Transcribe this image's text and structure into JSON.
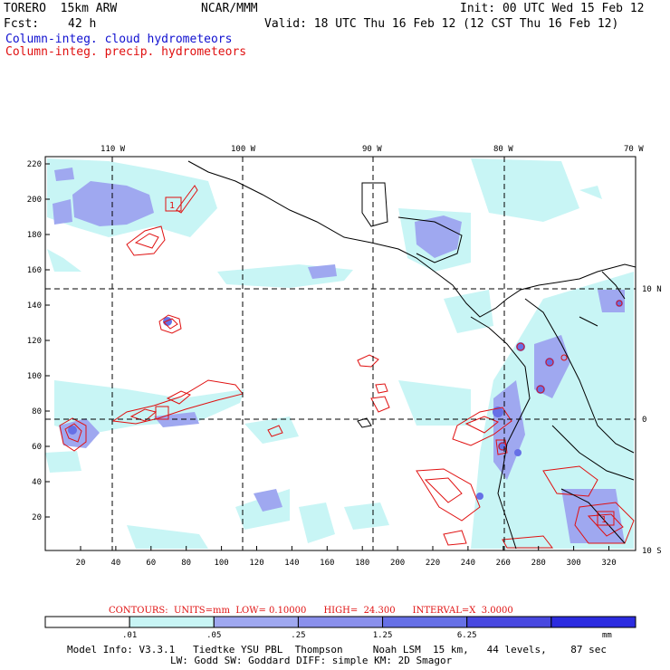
{
  "header": {
    "model": "TORERO  15km ARW",
    "center": "NCAR/MMM",
    "init": "Init: 00 UTC Wed 15 Feb 12",
    "fcst_label": "Fcst:",
    "fcst_value": "42 h",
    "valid": "Valid: 18 UTC Thu 16 Feb 12 (12 CST Thu 16 Feb 12)",
    "field1": "Column-integ. cloud hydrometeors",
    "field2": "Column-integ. precip. hydrometeors"
  },
  "map": {
    "lon_labels": [
      "110 W",
      "100 W",
      "90 W",
      "80 W",
      "70 W"
    ],
    "lat_labels": [
      "10 N",
      "0",
      "10 S"
    ],
    "y_ticks": [
      "220",
      "200",
      "180",
      "160",
      "140",
      "120",
      "100",
      "80",
      "60",
      "40",
      "20"
    ],
    "x_ticks": [
      "20",
      "40",
      "60",
      "80",
      "100",
      "120",
      "140",
      "160",
      "180",
      "200",
      "220",
      "240",
      "260",
      "280",
      "300",
      "320"
    ],
    "box_label": "1",
    "colors": {
      "light": "#c8f5f5",
      "mid": "#9fa8f0",
      "dark": "#6670e6",
      "deep": "#2c2ce0",
      "contour": "#e01010",
      "coast": "#000000"
    }
  },
  "contours_info": "CONTOURS:  UNITS=mm  LOW= 0.10000      HIGH=  24.300      INTERVAL=X  3.0000",
  "colorbar": {
    "labels": [
      ".01",
      ".05",
      ".25",
      "1.25",
      "6.25"
    ],
    "unit": "mm",
    "colors": [
      "#ffffff",
      "#c8f5f5",
      "#9fa8f0",
      "#8a90ec",
      "#6670e6",
      "#4848e0",
      "#2c2ce0"
    ]
  },
  "footer": {
    "line1": "Model Info: V3.3.1   Tiedtke YSU PBL  Thompson     Noah LSM  15 km,   44 levels,    87 sec",
    "line2": "LW: Godd SW: Goddard DIFF: simple KM: 2D Smagor"
  }
}
